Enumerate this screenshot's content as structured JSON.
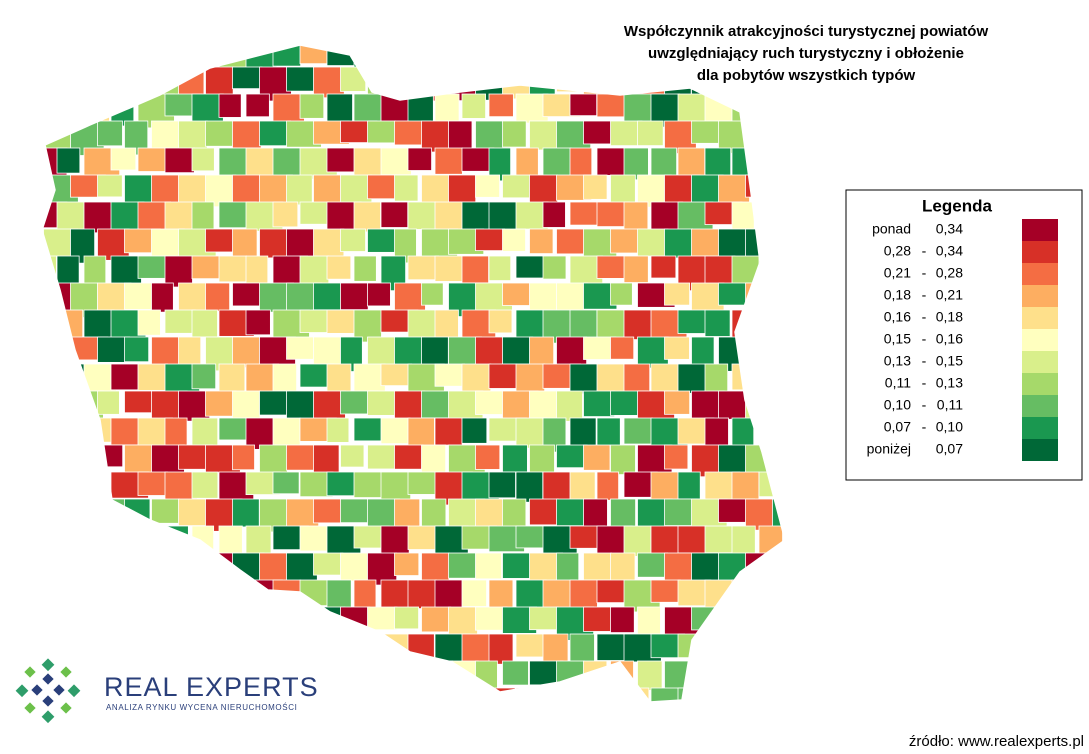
{
  "title": [
    "Współczynnik atrakcyjności turystycznej powiatów",
    "uwzględniający ruch turystyczny i obłożenie",
    "dla pobytów wszystkich typów"
  ],
  "legend": {
    "title": "Legenda",
    "items": [
      {
        "range": [
          "ponad",
          "0,34"
        ],
        "color": "#a50026"
      },
      {
        "range": [
          "0,28",
          "-",
          "0,34"
        ],
        "color": "#d73027"
      },
      {
        "range": [
          "0,21",
          "-",
          "0,28"
        ],
        "color": "#f46d43"
      },
      {
        "range": [
          "0,18",
          "-",
          "0,21"
        ],
        "color": "#fdae61"
      },
      {
        "range": [
          "0,16",
          "-",
          "0,18"
        ],
        "color": "#fee08b"
      },
      {
        "range": [
          "0,15",
          "-",
          "0,16"
        ],
        "color": "#ffffbf"
      },
      {
        "range": [
          "0,13",
          "-",
          "0,15"
        ],
        "color": "#d9ef8b"
      },
      {
        "range": [
          "0,11",
          "-",
          "0,13"
        ],
        "color": "#a6d96a"
      },
      {
        "range": [
          "0,10",
          "-",
          "0,11"
        ],
        "color": "#66bd63"
      },
      {
        "range": [
          "0,07",
          "-",
          "0,10"
        ],
        "color": "#1a9850"
      },
      {
        "range": [
          "poniżej",
          "0,07"
        ],
        "color": "#006837"
      }
    ]
  },
  "logo": {
    "name": "REAL EXPERTS",
    "tagline": "ANALIZA RYNKU  WYCENA NIERUCHOMOŚCI"
  },
  "source": "źródło: www.realexperts.pl"
}
